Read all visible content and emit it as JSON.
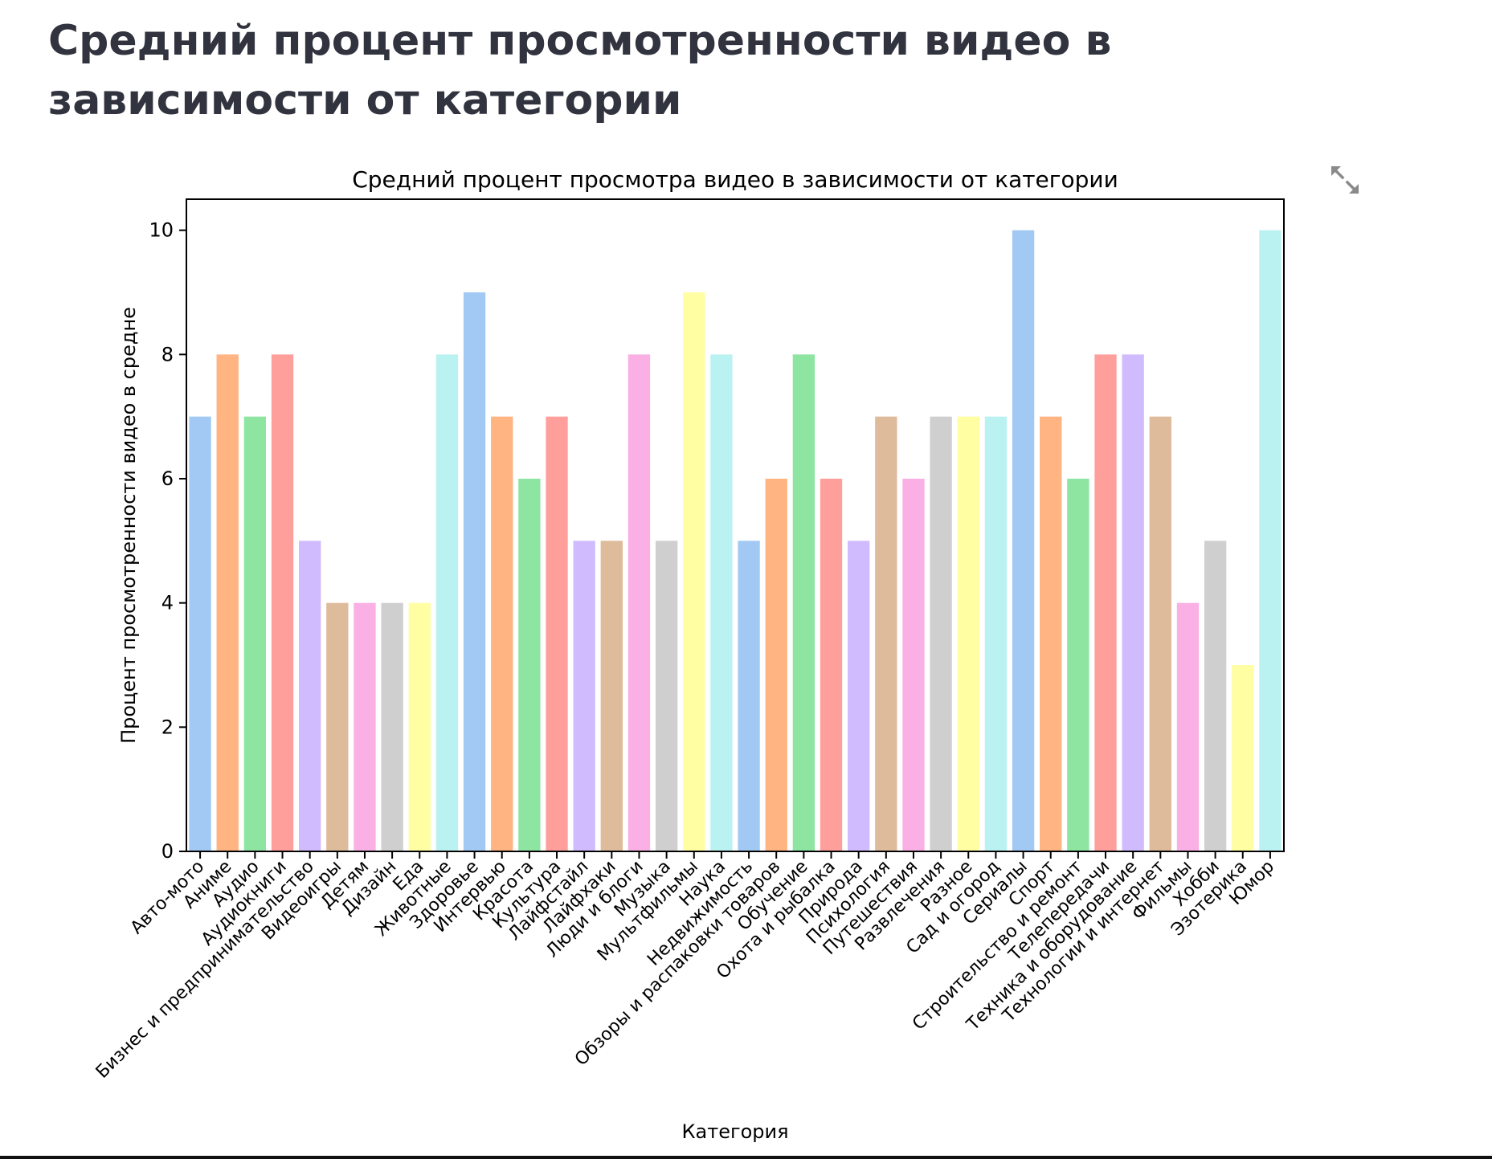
{
  "page": {
    "heading": "Средний процент просмотренности видео в зависимости от категории",
    "fullscreen_icon": "expand-icon"
  },
  "chart_data": {
    "type": "bar",
    "title": "Средний процент просмотра видео в зависимости от категории",
    "xlabel": "Категория",
    "ylabel": "Процент просмотренности видео в средне",
    "ylim": [
      0,
      10.5
    ],
    "yticks": [
      0,
      2,
      4,
      6,
      8,
      10
    ],
    "grid": false,
    "categories": [
      "Авто-мото",
      "Аниме",
      "Аудио",
      "Аудиокниги",
      "Бизнес и предпринимательство",
      "Видеоигры",
      "Детям",
      "Дизайн",
      "Еда",
      "Животные",
      "Здоровье",
      "Интервью",
      "Красота",
      "Культура",
      "Лайфстайл",
      "Лайфхаки",
      "Люди и блоги",
      "Музыка",
      "Мультфильмы",
      "Наука",
      "Недвижимость",
      "Обзоры и распаковки товаров",
      "Обучение",
      "Охота и рыбалка",
      "Природа",
      "Психология",
      "Путешествия",
      "Развлечения",
      "Разное",
      "Сад и огород",
      "Сериалы",
      "Спорт",
      "Строительство и ремонт",
      "Телепередачи",
      "Техника и оборудование",
      "Технологии и интернет",
      "Фильмы",
      "Хобби",
      "Эзотерика",
      "Юмор"
    ],
    "values": [
      7,
      8,
      7,
      8,
      5,
      4,
      4,
      4,
      4,
      8,
      9,
      7,
      6,
      7,
      5,
      5,
      8,
      5,
      9,
      8,
      5,
      6,
      8,
      6,
      5,
      7,
      6,
      7,
      7,
      7,
      10,
      7,
      6,
      8,
      8,
      7,
      4,
      5,
      3,
      10
    ],
    "palette": [
      "#a1c9f4",
      "#ffb482",
      "#8de5a1",
      "#ff9f9b",
      "#d0bbff",
      "#debb9b",
      "#fab0e4",
      "#cfcfcf",
      "#fffea3",
      "#b9f2f0"
    ]
  }
}
